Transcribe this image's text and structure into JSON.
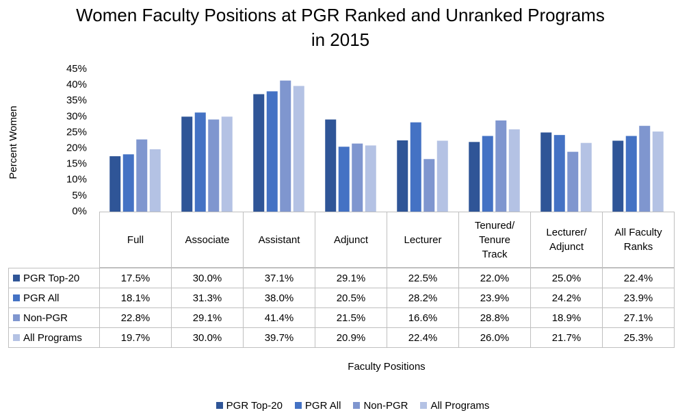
{
  "chart_data": {
    "type": "bar",
    "title": "Women Faculty Positions at PGR Ranked and Unranked Programs in 2015",
    "y_label": "Percent Women",
    "x_label": "Faculty Positions",
    "categories": [
      "Full",
      "Associate",
      "Assistant",
      "Adjunct",
      "Lecturer",
      "Tenured/ Tenure Track",
      "Lecturer/ Adjunct",
      "All Faculty Ranks"
    ],
    "series": [
      {
        "name": "PGR Top-20",
        "color": "#2f5597",
        "values": [
          17.5,
          30.0,
          37.1,
          29.1,
          22.5,
          22.0,
          25.0,
          22.4
        ],
        "value_labels": [
          "17.5%",
          "30.0%",
          "37.1%",
          "29.1%",
          "22.5%",
          "22.0%",
          "25.0%",
          "22.4%"
        ]
      },
      {
        "name": "PGR All",
        "color": "#4472c4",
        "values": [
          18.1,
          31.3,
          38.0,
          20.5,
          28.2,
          23.9,
          24.2,
          23.9
        ],
        "value_labels": [
          "18.1%",
          "31.3%",
          "38.0%",
          "20.5%",
          "28.2%",
          "23.9%",
          "24.2%",
          "23.9%"
        ]
      },
      {
        "name": "Non-PGR",
        "color": "#7f96cf",
        "values": [
          22.8,
          29.1,
          41.4,
          21.5,
          16.6,
          28.8,
          18.9,
          27.1
        ],
        "value_labels": [
          "22.8%",
          "29.1%",
          "41.4%",
          "21.5%",
          "16.6%",
          "28.8%",
          "18.9%",
          "27.1%"
        ]
      },
      {
        "name": "All Programs",
        "color": "#b4c2e4",
        "values": [
          19.7,
          30.0,
          39.7,
          20.9,
          22.4,
          26.0,
          21.7,
          25.3
        ],
        "value_labels": [
          "19.7%",
          "30.0%",
          "39.7%",
          "20.9%",
          "22.4%",
          "26.0%",
          "21.7%",
          "25.3%"
        ]
      }
    ],
    "ylim": [
      0,
      45
    ],
    "yticks": [
      {
        "value": 0,
        "label": "0%"
      },
      {
        "value": 5,
        "label": "5%"
      },
      {
        "value": 10,
        "label": "10%"
      },
      {
        "value": 15,
        "label": "15%"
      },
      {
        "value": 20,
        "label": "20%"
      },
      {
        "value": 25,
        "label": "25%"
      },
      {
        "value": 30,
        "label": "30%"
      },
      {
        "value": 35,
        "label": "35%"
      },
      {
        "value": 40,
        "label": "40%"
      },
      {
        "value": 45,
        "label": "45%"
      }
    ],
    "grid": false
  }
}
